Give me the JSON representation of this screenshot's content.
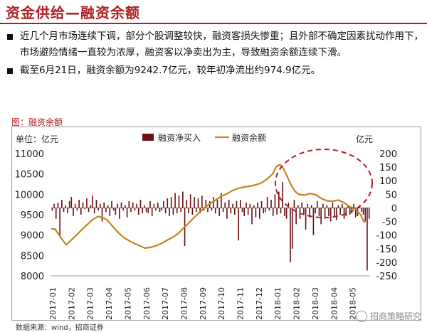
{
  "title": "资金供给—融资余额",
  "bullets": [
    "近几个月市场连续下调，部分个股调整较快，融资客损失惨重；且外部不确定因素扰动作用下，市场避险情绪一直较为浓厚，融资客以净卖出为主，导致融资余额连续下滑。",
    "截至6月21日，融资余额为9242.7亿元，较年初净流出约974.9亿元。"
  ],
  "figure_title": "图：融资余额",
  "source": "数据来源：wind，招商证券",
  "watermark": "招商策略研究",
  "colors": {
    "brand": "#b01e23",
    "bars": "#6b0f12",
    "line": "#c8821e"
  },
  "chart_data": {
    "type": "bar+line",
    "legend": [
      "融资净买入",
      "融资余额"
    ],
    "legend_position": "top",
    "left_axis": {
      "label": "单位：亿元",
      "ticks": [
        8000,
        8500,
        9000,
        9500,
        10000,
        10500,
        11000
      ],
      "ylim": [
        8000,
        11000
      ]
    },
    "right_axis": {
      "label": "亿元",
      "ticks": [
        -250,
        -200,
        -150,
        -100,
        -50,
        0,
        50,
        100,
        150,
        200
      ],
      "ylim": [
        -250,
        200
      ]
    },
    "x_ticks": [
      "2017-01",
      "2017-02",
      "2017-03",
      "2017-04",
      "2017-05",
      "2017-06",
      "2017-07",
      "2017-08",
      "2017-09",
      "2017-10",
      "2017-11",
      "2017-12",
      "2018-01",
      "2018-02",
      "2018-03",
      "2018-04",
      "2018-05"
    ],
    "line_series": {
      "name": "融资余额",
      "points": [
        [
          0,
          9150
        ],
        [
          0.2,
          9150
        ],
        [
          0.4,
          9020
        ],
        [
          0.6,
          8880
        ],
        [
          0.8,
          8760
        ],
        [
          1.0,
          8850
        ],
        [
          1.3,
          8980
        ],
        [
          1.6,
          9120
        ],
        [
          1.9,
          9250
        ],
        [
          2.2,
          9380
        ],
        [
          2.5,
          9460
        ],
        [
          2.8,
          9420
        ],
        [
          3.0,
          9360
        ],
        [
          3.3,
          9200
        ],
        [
          3.6,
          9050
        ],
        [
          3.9,
          8930
        ],
        [
          4.2,
          8850
        ],
        [
          4.5,
          8780
        ],
        [
          4.8,
          8720
        ],
        [
          5.0,
          8680
        ],
        [
          5.3,
          8700
        ],
        [
          5.6,
          8740
        ],
        [
          5.9,
          8800
        ],
        [
          6.2,
          8880
        ],
        [
          6.5,
          8950
        ],
        [
          6.8,
          9050
        ],
        [
          7.0,
          9150
        ],
        [
          7.3,
          9280
        ],
        [
          7.6,
          9420
        ],
        [
          7.9,
          9560
        ],
        [
          8.2,
          9680
        ],
        [
          8.5,
          9780
        ],
        [
          8.8,
          9870
        ],
        [
          9.1,
          9960
        ],
        [
          9.4,
          10020
        ],
        [
          9.7,
          10100
        ],
        [
          10.0,
          10150
        ],
        [
          10.3,
          10180
        ],
        [
          10.6,
          10200
        ],
        [
          10.9,
          10230
        ],
        [
          11.2,
          10280
        ],
        [
          11.5,
          10370
        ],
        [
          11.8,
          10500
        ],
        [
          12.0,
          10680
        ],
        [
          12.2,
          10730
        ],
        [
          12.4,
          10620
        ],
        [
          12.6,
          10420
        ],
        [
          12.8,
          10220
        ],
        [
          13.0,
          10070
        ],
        [
          13.2,
          10000
        ],
        [
          13.5,
          9980
        ],
        [
          13.8,
          10020
        ],
        [
          14.1,
          9990
        ],
        [
          14.4,
          9900
        ],
        [
          14.7,
          9840
        ],
        [
          15.0,
          9830
        ],
        [
          15.3,
          9860
        ],
        [
          15.6,
          9800
        ],
        [
          15.9,
          9700
        ],
        [
          16.2,
          9640
        ],
        [
          16.5,
          9500
        ],
        [
          16.7,
          9300
        ]
      ]
    },
    "bar_series": {
      "name": "融资净买入",
      "values": [
        -10,
        15,
        -40,
        20,
        -100,
        30,
        -15,
        10,
        -20,
        25,
        40,
        -30,
        15,
        -10,
        30,
        -25,
        20,
        -5,
        35,
        -15,
        10,
        45,
        -20,
        30,
        -10,
        15,
        -50,
        20,
        -15,
        10,
        -30,
        25,
        -10,
        -25,
        15,
        -40,
        20,
        -10,
        10,
        -35,
        25,
        -15,
        20,
        -10,
        15,
        -25,
        30,
        -20,
        10,
        -15,
        -20,
        25,
        -30,
        15,
        -10,
        20,
        -15,
        -10,
        25,
        -20,
        35,
        -30,
        40,
        -25,
        55,
        -20,
        45,
        -15,
        60,
        -140,
        30,
        -20,
        50,
        -25,
        40,
        -15,
        35,
        -20,
        45,
        -10,
        30,
        -15,
        25,
        -10,
        40,
        -20,
        30,
        -30,
        55,
        -15,
        20,
        -40,
        30,
        -20,
        15,
        -25,
        25,
        -120,
        30,
        -15,
        -30,
        20,
        -25,
        15,
        -60,
        10,
        -35,
        20,
        -40,
        25,
        -20,
        -15,
        40,
        -10,
        30,
        -30,
        50,
        -25,
        60,
        -20,
        95,
        -30,
        -40,
        20,
        -200,
        -150,
        30,
        -60,
        10,
        -40,
        20,
        -25,
        -80,
        15,
        -35,
        10,
        -100,
        -20,
        25,
        -30,
        -60,
        15,
        -40,
        10,
        -30,
        -50,
        20,
        -35,
        -45,
        10,
        -25,
        15,
        -40,
        -30,
        10,
        -25,
        -20,
        15,
        -35,
        -30,
        10,
        -15,
        -25,
        -50,
        -230,
        -40
      ]
    },
    "annotation": "dashed red ellipse around 2018 decline"
  }
}
